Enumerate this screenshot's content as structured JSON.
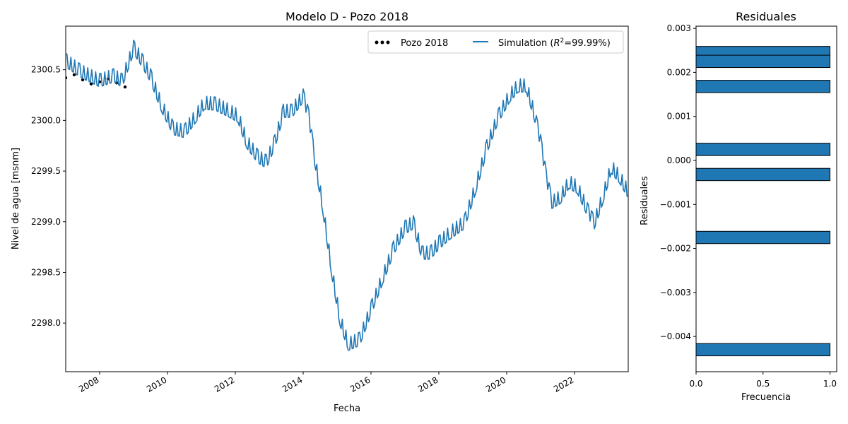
{
  "chart_data": [
    {
      "type": "line",
      "title": "Modelo D - Pozo 2018",
      "xlabel": "Fecha",
      "ylabel": "Nivel de agua [msnm]",
      "xlim": [
        "2007-01",
        "2023-08"
      ],
      "ylim": [
        2297.52,
        2300.93
      ],
      "x_ticks": [
        "2008",
        "2010",
        "2012",
        "2014",
        "2016",
        "2018",
        "2020",
        "2022"
      ],
      "y_ticks": [
        "2298.0",
        "2298.5",
        "2299.0",
        "2299.5",
        "2300.0",
        "2300.5"
      ],
      "legend_position": "top-right",
      "legend": {
        "observed_label": "Pozo 2018",
        "simulation_label": "Simulation",
        "r2_text": "=99.99%)"
      },
      "series": [
        {
          "name": "Pozo 2018",
          "style": "dots",
          "color": "#000000",
          "points": [
            [
              "2007-01",
              2300.42
            ],
            [
              "2007-04",
              2300.45
            ],
            [
              "2007-07",
              2300.4
            ],
            [
              "2007-10",
              2300.36
            ],
            [
              "2008-01",
              2300.38
            ],
            [
              "2008-04",
              2300.41
            ],
            [
              "2008-07",
              2300.37
            ],
            [
              "2008-10",
              2300.33
            ]
          ]
        },
        {
          "name": "Simulation",
          "style": "line",
          "color": "#1f77b4",
          "points": [
            [
              "2007-01",
              2300.55
            ],
            [
              "2007-06",
              2300.45
            ],
            [
              "2008-01",
              2300.35
            ],
            [
              "2008-06",
              2300.4
            ],
            [
              "2008-09",
              2300.35
            ],
            [
              "2009-01",
              2300.68
            ],
            [
              "2009-04",
              2300.55
            ],
            [
              "2009-07",
              2300.4
            ],
            [
              "2009-11",
              2300.1
            ],
            [
              "2010-03",
              2299.88
            ],
            [
              "2010-07",
              2299.85
            ],
            [
              "2010-11",
              2300.0
            ],
            [
              "2011-02",
              2300.13
            ],
            [
              "2011-06",
              2300.12
            ],
            [
              "2011-11",
              2300.05
            ],
            [
              "2012-02",
              2300.0
            ],
            [
              "2012-05",
              2299.75
            ],
            [
              "2012-09",
              2299.6
            ],
            [
              "2012-12",
              2299.55
            ],
            [
              "2013-03",
              2299.75
            ],
            [
              "2013-06",
              2300.05
            ],
            [
              "2013-09",
              2300.05
            ],
            [
              "2014-01",
              2300.2
            ],
            [
              "2014-03",
              2300.0
            ],
            [
              "2014-05",
              2299.6
            ],
            [
              "2014-08",
              2299.1
            ],
            [
              "2014-11",
              2298.5
            ],
            [
              "2015-02",
              2298.0
            ],
            [
              "2015-05",
              2297.75
            ],
            [
              "2015-09",
              2297.8
            ],
            [
              "2016-01",
              2298.1
            ],
            [
              "2016-05",
              2298.4
            ],
            [
              "2016-09",
              2298.7
            ],
            [
              "2017-01",
              2298.9
            ],
            [
              "2017-04",
              2298.95
            ],
            [
              "2017-07",
              2298.65
            ],
            [
              "2017-10",
              2298.65
            ],
            [
              "2018-01",
              2298.75
            ],
            [
              "2018-05",
              2298.85
            ],
            [
              "2018-10",
              2298.95
            ],
            [
              "2019-02",
              2299.3
            ],
            [
              "2019-06",
              2299.7
            ],
            [
              "2019-10",
              2300.0
            ],
            [
              "2020-02",
              2300.2
            ],
            [
              "2020-05",
              2300.3
            ],
            [
              "2020-08",
              2300.3
            ],
            [
              "2020-11",
              2300.0
            ],
            [
              "2021-01",
              2299.75
            ],
            [
              "2021-03",
              2299.4
            ],
            [
              "2021-05",
              2299.15
            ],
            [
              "2021-08",
              2299.2
            ],
            [
              "2021-11",
              2299.35
            ],
            [
              "2022-02",
              2299.3
            ],
            [
              "2022-06",
              2299.05
            ],
            [
              "2022-08",
              2298.95
            ],
            [
              "2022-11",
              2299.2
            ],
            [
              "2023-02",
              2299.5
            ],
            [
              "2023-05",
              2299.4
            ],
            [
              "2023-08",
              2299.25
            ]
          ]
        }
      ]
    },
    {
      "type": "bar",
      "orientation": "horizontal",
      "title": "Residuales",
      "xlabel": "Frecuencia",
      "ylabel": "Residuales",
      "xlim": [
        0,
        1.05
      ],
      "ylim": [
        -0.0048,
        0.00305
      ],
      "x_ticks": [
        "0.0",
        "0.5",
        "1.0"
      ],
      "y_ticks": [
        "0.003",
        "0.002",
        "0.001",
        "0.000",
        "−0.001",
        "−0.002",
        "−0.003",
        "−0.004"
      ],
      "bar_color": "#1f77b4",
      "bar_height": 0.00028,
      "bins": [
        {
          "center": 0.00245,
          "count": 1
        },
        {
          "center": 0.00225,
          "count": 1
        },
        {
          "center": 0.00168,
          "count": 1
        },
        {
          "center": 0.00025,
          "count": 1
        },
        {
          "center": -0.00032,
          "count": 1
        },
        {
          "center": -0.00175,
          "count": 1
        },
        {
          "center": -0.0043,
          "count": 1
        }
      ]
    }
  ]
}
